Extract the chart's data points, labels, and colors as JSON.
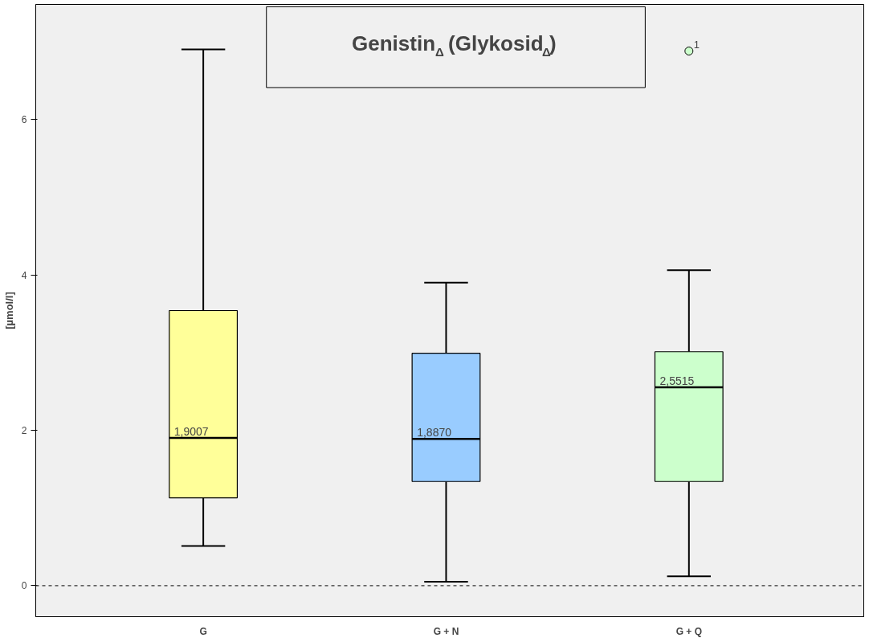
{
  "chart_data": {
    "type": "box",
    "title": "Genistin$_{Δ}$ (Glykosid$_{Δ}$)",
    "ylabel": "[µmol/l]",
    "categories": [
      "G",
      "G + N",
      "G + Q"
    ],
    "colors": [
      "#ffff99",
      "#99ccff",
      "#ccffcc"
    ],
    "boxes": [
      {
        "low": 0.51,
        "q1": 1.13,
        "median": 1.9007,
        "q3": 3.54,
        "high": 6.9
      },
      {
        "low": 0.05,
        "q1": 1.34,
        "median": 1.887,
        "q3": 2.99,
        "high": 3.9
      },
      {
        "low": 0.12,
        "q1": 1.34,
        "median": 2.5515,
        "q3": 3.01,
        "high": 4.06,
        "outliers": [
          6.88
        ]
      }
    ],
    "value_labels": [
      "1,9007",
      "1,8870",
      "2,5515"
    ],
    "annotations": [
      "1"
    ],
    "ref_lines": [
      {
        "axis": "y",
        "value": 0,
        "line_style": "dashed"
      }
    ],
    "ylim": [
      -0.4,
      7.48
    ],
    "yticks": [
      0,
      2,
      4,
      6
    ],
    "grid": false
  }
}
